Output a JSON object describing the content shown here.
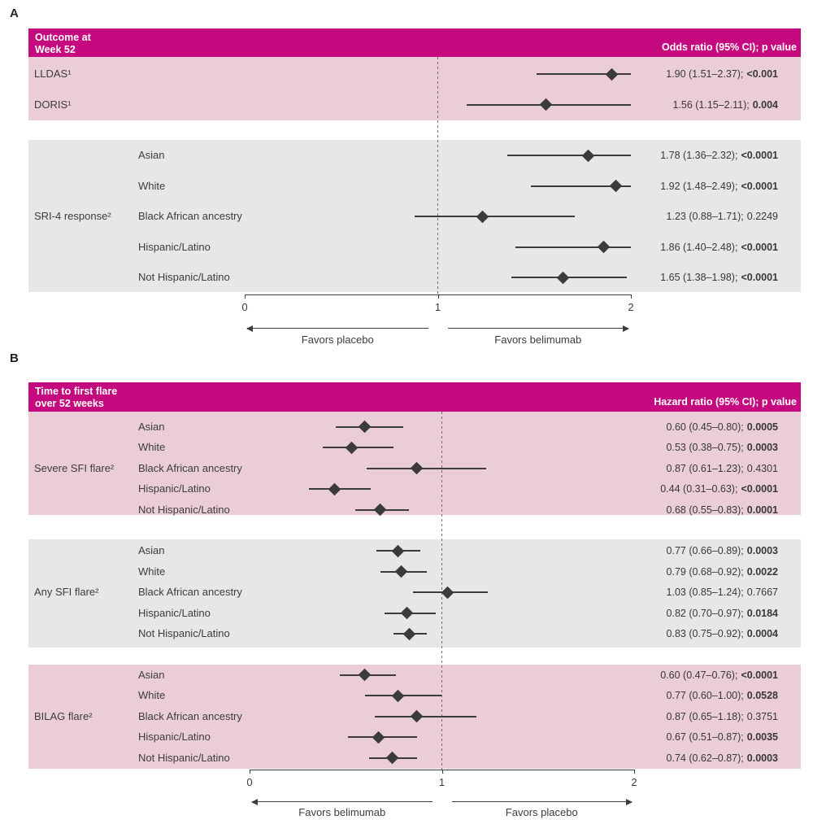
{
  "colors": {
    "header_bg": "#C40A7E",
    "pink_bg": "#EACDD9",
    "gray_bg": "#E7E7E7",
    "marker": "#3B3B3B",
    "text": "#3C3C3C"
  },
  "chart_data": [
    {
      "type": "forest",
      "panel_letter": "A",
      "title_left": "Outcome at\nWeek 52",
      "title_right": "Odds ratio (95% CI);  p value",
      "xlim": [
        0,
        2
      ],
      "xticks": [
        "0",
        "1",
        "2"
      ],
      "reference_line": 1,
      "favors_left": "Favors placebo",
      "favors_right": "Favors belimumab",
      "groups": [
        {
          "label": "",
          "bg": "pink",
          "rows": [
            {
              "label": "LLDAS¹",
              "estimate": 1.9,
              "ci_low": 1.51,
              "ci_high": 2.37,
              "value_text": "1.90 (1.51–2.37);",
              "p_text": "<0.001",
              "p_bold": true
            },
            {
              "label": "DORIS¹",
              "estimate": 1.56,
              "ci_low": 1.15,
              "ci_high": 2.11,
              "value_text": "1.56 (1.15–2.11);",
              "p_text": "0.004",
              "p_bold": true
            }
          ]
        },
        {
          "label": "SRI-4 response²",
          "bg": "gray",
          "rows": [
            {
              "label": "Asian",
              "estimate": 1.78,
              "ci_low": 1.36,
              "ci_high": 2.32,
              "value_text": "1.78 (1.36–2.32);",
              "p_text": "<0.0001",
              "p_bold": true
            },
            {
              "label": "White",
              "estimate": 1.92,
              "ci_low": 1.48,
              "ci_high": 2.49,
              "value_text": "1.92 (1.48–2.49);",
              "p_text": "<0.0001",
              "p_bold": true
            },
            {
              "label": "Black African ancestry",
              "estimate": 1.23,
              "ci_low": 0.88,
              "ci_high": 1.71,
              "value_text": "1.23 (0.88–1.71);",
              "p_text": "0.2249",
              "p_bold": false
            },
            {
              "label": "Hispanic/Latino",
              "estimate": 1.86,
              "ci_low": 1.4,
              "ci_high": 2.48,
              "value_text": "1.86 (1.40–2.48);",
              "p_text": "<0.0001",
              "p_bold": true
            },
            {
              "label": "Not Hispanic/Latino",
              "estimate": 1.65,
              "ci_low": 1.38,
              "ci_high": 1.98,
              "value_text": "1.65 (1.38–1.98);",
              "p_text": "<0.0001",
              "p_bold": true
            }
          ]
        }
      ]
    },
    {
      "type": "forest",
      "panel_letter": "B",
      "title_left": "Time to first flare\nover 52 weeks",
      "title_right": "Hazard ratio (95% CI); p value",
      "xlim": [
        0,
        2
      ],
      "xticks": [
        "0",
        "1",
        "2"
      ],
      "reference_line": 1,
      "favors_left": "Favors belimumab",
      "favors_right": "Favors placebo",
      "groups": [
        {
          "label": "Severe SFI flare²",
          "bg": "pink",
          "rows": [
            {
              "label": "Asian",
              "estimate": 0.6,
              "ci_low": 0.45,
              "ci_high": 0.8,
              "value_text": "0.60 (0.45–0.80);",
              "p_text": "0.0005",
              "p_bold": true
            },
            {
              "label": "White",
              "estimate": 0.53,
              "ci_low": 0.38,
              "ci_high": 0.75,
              "value_text": "0.53 (0.38–0.75);",
              "p_text": "0.0003",
              "p_bold": true
            },
            {
              "label": "Black African ancestry",
              "estimate": 0.87,
              "ci_low": 0.61,
              "ci_high": 1.23,
              "value_text": "0.87 (0.61–1.23);",
              "p_text": "0.4301",
              "p_bold": false
            },
            {
              "label": "Hispanic/Latino",
              "estimate": 0.44,
              "ci_low": 0.31,
              "ci_high": 0.63,
              "value_text": "0.44 (0.31–0.63);",
              "p_text": "<0.0001",
              "p_bold": true
            },
            {
              "label": "Not Hispanic/Latino",
              "estimate": 0.68,
              "ci_low": 0.55,
              "ci_high": 0.83,
              "value_text": "0.68 (0.55–0.83);",
              "p_text": "0.0001",
              "p_bold": true
            }
          ]
        },
        {
          "label": "Any SFI flare²",
          "bg": "gray",
          "rows": [
            {
              "label": "Asian",
              "estimate": 0.77,
              "ci_low": 0.66,
              "ci_high": 0.89,
              "value_text": "0.77 (0.66–0.89);",
              "p_text": "0.0003",
              "p_bold": true
            },
            {
              "label": "White",
              "estimate": 0.79,
              "ci_low": 0.68,
              "ci_high": 0.92,
              "value_text": "0.79 (0.68–0.92);",
              "p_text": "0.0022",
              "p_bold": true
            },
            {
              "label": "Black African ancestry",
              "estimate": 1.03,
              "ci_low": 0.85,
              "ci_high": 1.24,
              "value_text": "1.03 (0.85–1.24);",
              "p_text": "0.7667",
              "p_bold": false
            },
            {
              "label": "Hispanic/Latino",
              "estimate": 0.82,
              "ci_low": 0.7,
              "ci_high": 0.97,
              "value_text": "0.82 (0.70–0.97);",
              "p_text": "0.0184",
              "p_bold": true
            },
            {
              "label": "Not Hispanic/Latino",
              "estimate": 0.83,
              "ci_low": 0.75,
              "ci_high": 0.92,
              "value_text": "0.83 (0.75–0.92);",
              "p_text": "0.0004",
              "p_bold": true
            }
          ]
        },
        {
          "label": "BILAG flare²",
          "bg": "pink",
          "rows": [
            {
              "label": "Asian",
              "estimate": 0.6,
              "ci_low": 0.47,
              "ci_high": 0.76,
              "value_text": "0.60 (0.47–0.76);",
              "p_text": "<0.0001",
              "p_bold": true
            },
            {
              "label": "White",
              "estimate": 0.77,
              "ci_low": 0.6,
              "ci_high": 1.0,
              "value_text": "0.77 (0.60–1.00);",
              "p_text": "0.0528",
              "p_bold": true
            },
            {
              "label": "Black African ancestry",
              "estimate": 0.87,
              "ci_low": 0.65,
              "ci_high": 1.18,
              "value_text": "0.87 (0.65–1.18);",
              "p_text": "0.3751",
              "p_bold": false
            },
            {
              "label": "Hispanic/Latino",
              "estimate": 0.67,
              "ci_low": 0.51,
              "ci_high": 0.87,
              "value_text": "0.67 (0.51–0.87);",
              "p_text": "0.0035",
              "p_bold": true
            },
            {
              "label": "Not Hispanic/Latino",
              "estimate": 0.74,
              "ci_low": 0.62,
              "ci_high": 0.87,
              "value_text": "0.74 (0.62–0.87);",
              "p_text": "0.0003",
              "p_bold": true
            }
          ]
        }
      ]
    }
  ]
}
